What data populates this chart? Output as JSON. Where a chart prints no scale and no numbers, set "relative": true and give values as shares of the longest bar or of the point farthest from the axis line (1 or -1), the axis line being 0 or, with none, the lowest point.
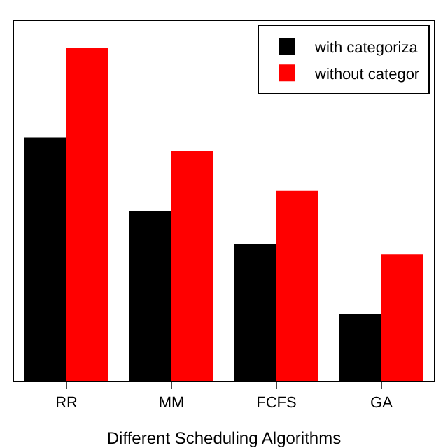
{
  "chart_data": {
    "type": "bar",
    "xlabel": "Different Scheduling Algorithms",
    "categories": [
      "RR",
      "MM",
      "FCFS",
      "GA"
    ],
    "relative": true,
    "legend": "top right",
    "grid": false,
    "series": [
      {
        "name": "with categoriza",
        "color": "#000000",
        "values": [
          0.73,
          0.51,
          0.41,
          0.2
        ]
      },
      {
        "name": "without categor",
        "color": "#ff0000",
        "values": [
          1,
          0.69,
          0.57,
          0.38
        ]
      }
    ]
  }
}
